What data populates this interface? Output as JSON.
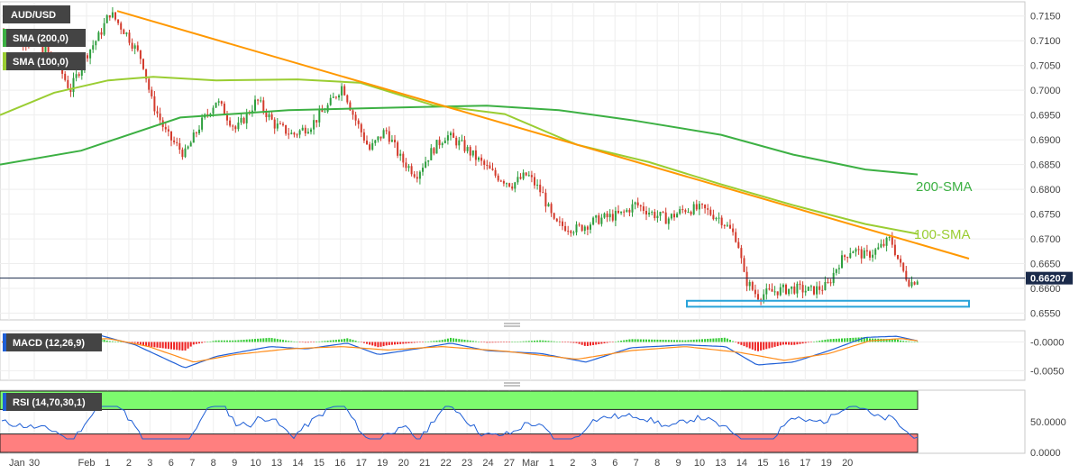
{
  "colors": {
    "bull": "#2e9e3e",
    "bear": "#d33a2c",
    "sma100": "#9acd32",
    "sma200": "#3cb043",
    "trendline": "#ff9800",
    "support": "#29a3d9",
    "macd": "#1f5fd6",
    "signal": "#ff8c1a",
    "rsi": "#1f5fd6",
    "rsi_upper_zone": "#7dfa6e",
    "rsi_lower_zone": "#ff7f7f",
    "tag_bg": "#444444"
  },
  "chart_data": [
    {
      "type": "candlestick",
      "title": "AUD/USD",
      "y_ticks": [
        "0.6550",
        "0.6600",
        "0.6650",
        "0.6700",
        "0.6750",
        "0.6800",
        "0.6850",
        "0.6900",
        "0.6950",
        "0.7000",
        "0.7050",
        "0.7100",
        "0.7150"
      ],
      "ylim": [
        0.654,
        0.7175
      ],
      "x_ticks": [
        "Jan",
        "30",
        "Feb",
        "1",
        "2",
        "3",
        "6",
        "7",
        "8",
        "9",
        "10",
        "13",
        "14",
        "15",
        "16",
        "17",
        "19",
        "20",
        "21",
        "22",
        "23",
        "24",
        "27",
        "Mar",
        "1",
        "2",
        "3",
        "6",
        "7",
        "8",
        "9",
        "10",
        "13",
        "14",
        "15",
        "16",
        "17",
        "19",
        "20"
      ],
      "last_price": "0.66207",
      "grid": true,
      "annotations": [
        "200-SMA",
        "100-SMA"
      ],
      "indicators": [
        {
          "name": "SMA (200,0)",
          "label": "200-SMA",
          "points": [
            [
              0,
              0.685
            ],
            [
              90,
              0.6878
            ],
            [
              200,
              0.6945
            ],
            [
              320,
              0.696
            ],
            [
              460,
              0.6966
            ],
            [
              540,
              0.6969
            ],
            [
              620,
              0.696
            ],
            [
              700,
              0.694
            ],
            [
              800,
              0.691
            ],
            [
              880,
              0.687
            ],
            [
              960,
              0.684
            ],
            [
              1018,
              0.683
            ]
          ]
        },
        {
          "name": "SMA (100,0)",
          "label": "100-SMA",
          "points": [
            [
              0,
              0.695
            ],
            [
              60,
              0.6995
            ],
            [
              120,
              0.702
            ],
            [
              170,
              0.7027
            ],
            [
              240,
              0.702
            ],
            [
              330,
              0.7022
            ],
            [
              400,
              0.7015
            ],
            [
              480,
              0.697
            ],
            [
              560,
              0.6952
            ],
            [
              640,
              0.689
            ],
            [
              720,
              0.6855
            ],
            [
              800,
              0.681
            ],
            [
              880,
              0.6768
            ],
            [
              960,
              0.673
            ],
            [
              1018,
              0.671
            ]
          ]
        },
        {
          "name": "Trend line",
          "points": [
            [
              130,
              0.716
            ],
            [
              1075,
              0.666
            ]
          ]
        },
        {
          "name": "Support zone",
          "points": [
            [
              762,
              0.6575
            ],
            [
              1075,
              0.6563
            ]
          ]
        }
      ],
      "candles_note": "AUD/USD declined from about 0.7157 in early Feb to near 0.6575 in early Mar and last trades at 0.66207"
    },
    {
      "type": "macd",
      "title": "MACD (12,26,9)",
      "y_ticks": [
        "-0.0000",
        "-0.0050"
      ],
      "ylim": [
        -0.0065,
        0.0018
      ]
    },
    {
      "type": "rsi",
      "title": "RSI (14,70,30,1)",
      "y_ticks": [
        "50.0000",
        "0.0000"
      ],
      "ylim": [
        0,
        100
      ]
    }
  ]
}
